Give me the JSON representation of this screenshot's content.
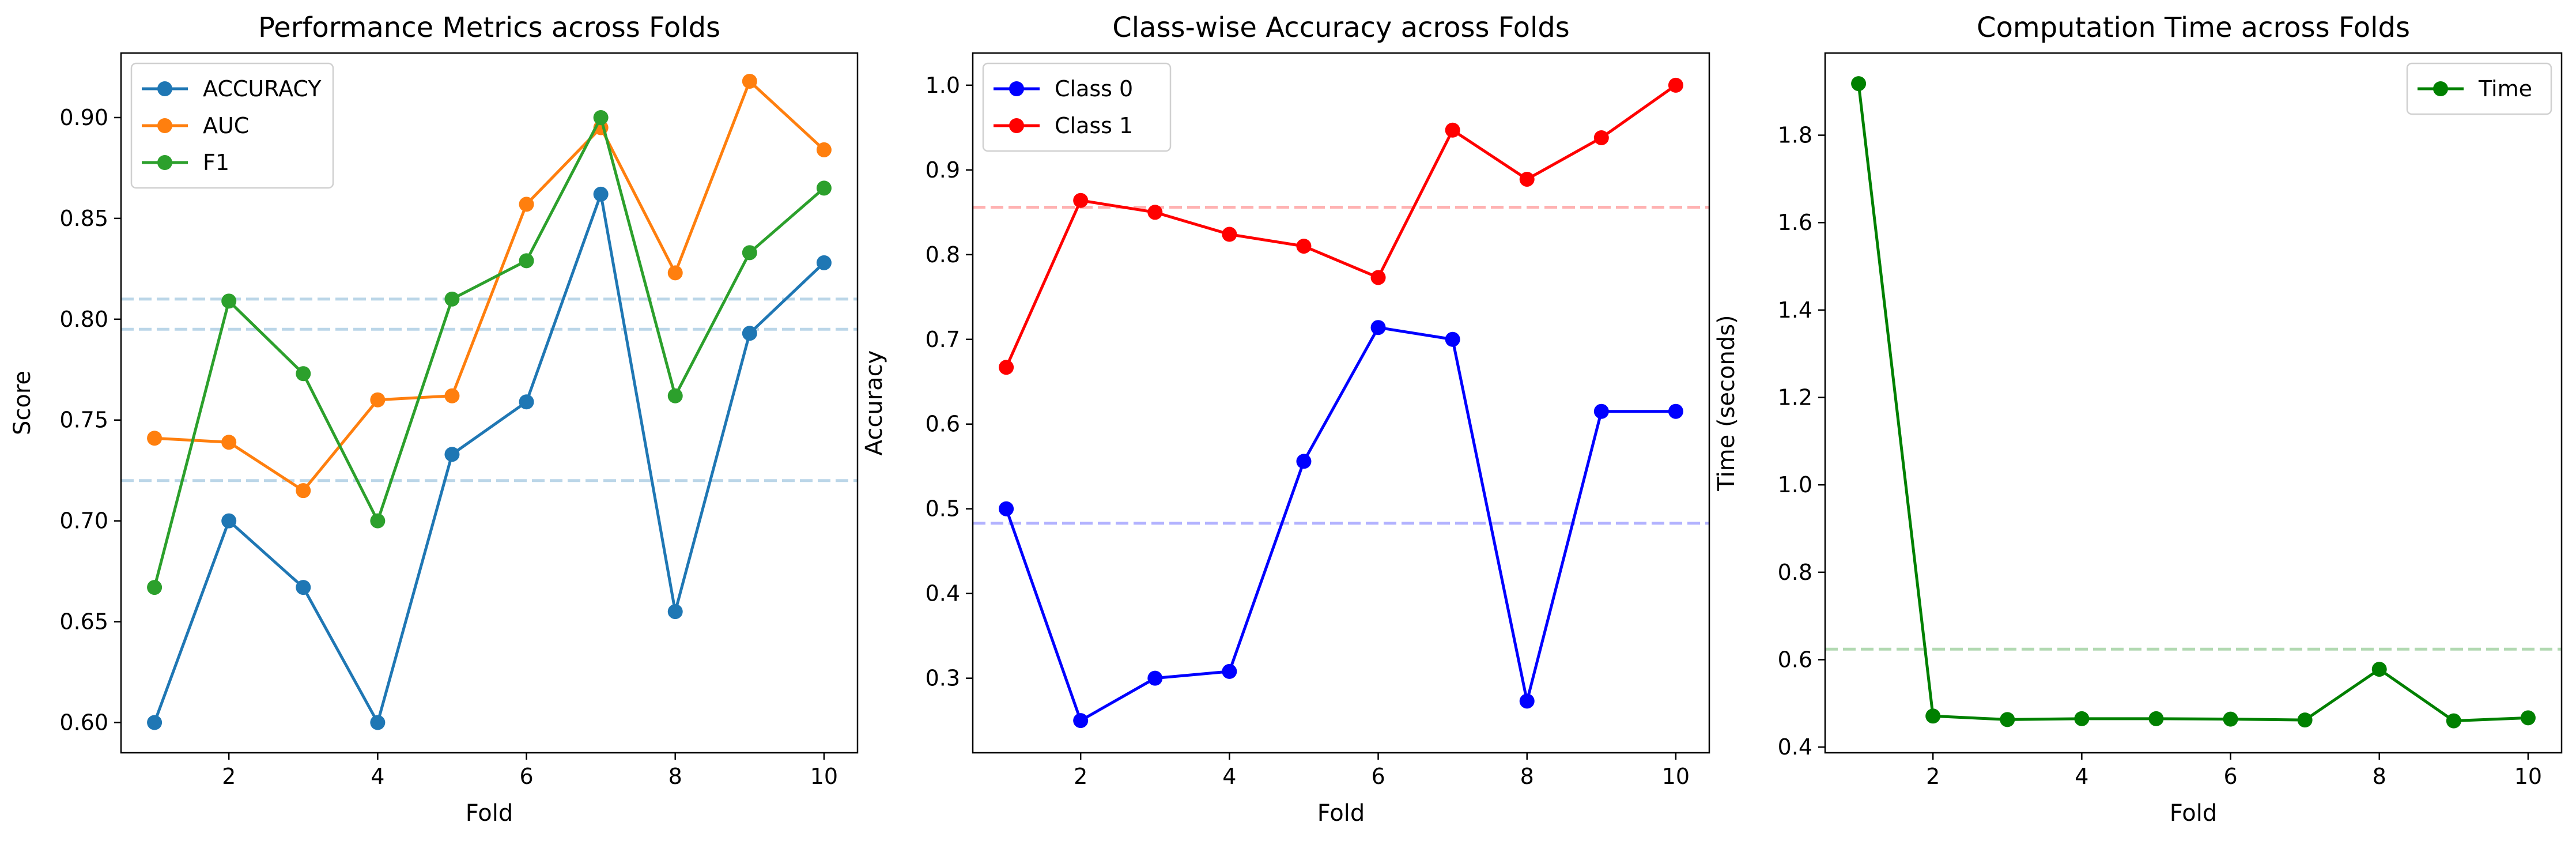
{
  "chart_data": [
    {
      "type": "line",
      "title": "Performance Metrics across Folds",
      "xlabel": "Fold",
      "ylabel": "Score",
      "x": [
        1,
        2,
        3,
        4,
        5,
        6,
        7,
        8,
        9,
        10
      ],
      "xlim": [
        0.55,
        10.45
      ],
      "ylim": [
        0.585,
        0.932
      ],
      "xticks": [
        2,
        4,
        6,
        8,
        10
      ],
      "yticks": [
        0.6,
        0.65,
        0.7,
        0.75,
        0.8,
        0.85,
        0.9
      ],
      "ytick_labels": [
        "0.60",
        "0.65",
        "0.70",
        "0.75",
        "0.80",
        "0.85",
        "0.90"
      ],
      "series": [
        {
          "name": "ACCURACY",
          "color": "#1f77b4",
          "values": [
            0.6,
            0.7,
            0.667,
            0.6,
            0.733,
            0.759,
            0.862,
            0.655,
            0.793,
            0.828
          ]
        },
        {
          "name": "AUC",
          "color": "#ff7f0e",
          "values": [
            0.741,
            0.739,
            0.715,
            0.76,
            0.762,
            0.857,
            0.895,
            0.823,
            0.918,
            0.884
          ]
        },
        {
          "name": "F1",
          "color": "#2ca02c",
          "values": [
            0.667,
            0.809,
            0.773,
            0.7,
            0.81,
            0.829,
            0.9,
            0.762,
            0.833,
            0.865
          ]
        }
      ],
      "hlines": [
        {
          "value": 0.72,
          "color": "#1f77b4"
        },
        {
          "value": 0.795,
          "color": "#1f77b4"
        },
        {
          "value": 0.81,
          "color": "#1f77b4"
        }
      ],
      "legend": "top-left",
      "grid": false
    },
    {
      "type": "line",
      "title": "Class-wise Accuracy across Folds",
      "xlabel": "Fold",
      "ylabel": "Accuracy",
      "x": [
        1,
        2,
        3,
        4,
        5,
        6,
        7,
        8,
        9,
        10
      ],
      "xlim": [
        0.55,
        10.45
      ],
      "ylim": [
        0.212,
        1.038
      ],
      "xticks": [
        2,
        4,
        6,
        8,
        10
      ],
      "yticks": [
        0.3,
        0.4,
        0.5,
        0.6,
        0.7,
        0.8,
        0.9,
        1.0
      ],
      "ytick_labels": [
        "0.3",
        "0.4",
        "0.5",
        "0.6",
        "0.7",
        "0.8",
        "0.9",
        "1.0"
      ],
      "series": [
        {
          "name": "Class 0",
          "color": "#0000ff",
          "values": [
            0.5,
            0.25,
            0.3,
            0.308,
            0.556,
            0.714,
            0.7,
            0.273,
            0.615,
            0.615
          ]
        },
        {
          "name": "Class 1",
          "color": "#ff0000",
          "values": [
            0.667,
            0.864,
            0.85,
            0.824,
            0.81,
            0.773,
            0.947,
            0.889,
            0.938,
            1.0
          ]
        }
      ],
      "hlines": [
        {
          "value": 0.483,
          "color": "#0000ff"
        },
        {
          "value": 0.856,
          "color": "#ff0000"
        }
      ],
      "legend": "top-left",
      "grid": false
    },
    {
      "type": "line",
      "title": "Computation Time across Folds",
      "xlabel": "Fold",
      "ylabel": "Time (seconds)",
      "x": [
        1,
        2,
        3,
        4,
        5,
        6,
        7,
        8,
        9,
        10
      ],
      "xlim": [
        0.55,
        10.45
      ],
      "ylim": [
        0.387,
        1.988
      ],
      "xticks": [
        2,
        4,
        6,
        8,
        10
      ],
      "yticks": [
        0.4,
        0.6,
        0.8,
        1.0,
        1.2,
        1.4,
        1.6,
        1.8
      ],
      "ytick_labels": [
        "0.4",
        "0.6",
        "0.8",
        "1.0",
        "1.2",
        "1.4",
        "1.6",
        "1.8"
      ],
      "series": [
        {
          "name": "Time",
          "color": "#008000",
          "values": [
            1.918,
            0.471,
            0.463,
            0.465,
            0.465,
            0.464,
            0.462,
            0.578,
            0.46,
            0.467
          ]
        }
      ],
      "hlines": [
        {
          "value": 0.624,
          "color": "#008000"
        }
      ],
      "legend": "top-right",
      "grid": false
    }
  ]
}
